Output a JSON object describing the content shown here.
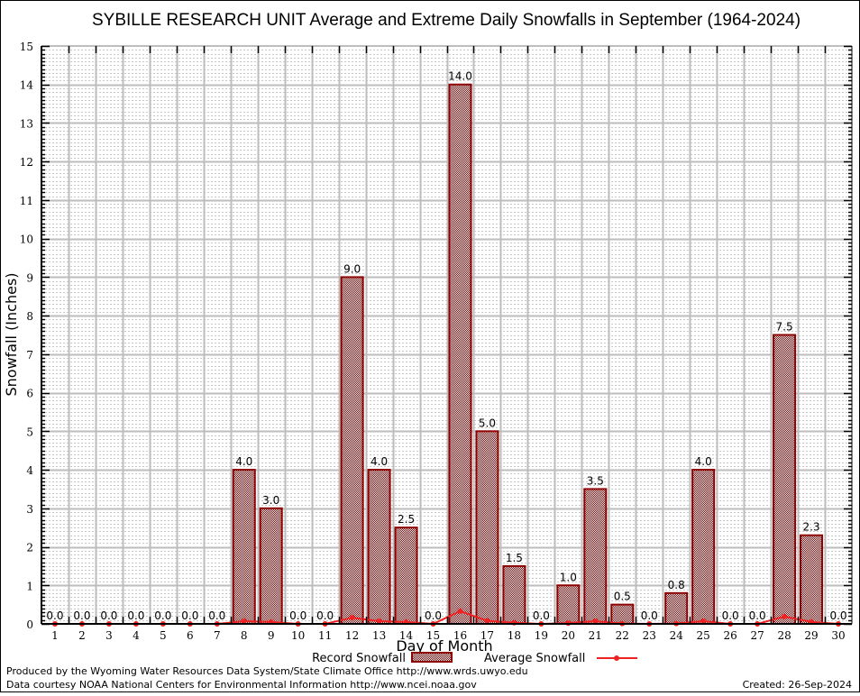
{
  "chart_data": {
    "type": "bar",
    "title": "SYBILLE RESEARCH UNIT Average and Extreme Daily Snowfalls in September (1964-2024)",
    "xlabel": "Day of Month",
    "ylabel": "Snowfall (Inches)",
    "ylim": [
      0,
      15
    ],
    "yticks": [
      "0",
      "1",
      "2",
      "3",
      "4",
      "5",
      "6",
      "7",
      "8",
      "9",
      "10",
      "11",
      "12",
      "13",
      "14",
      "15"
    ],
    "grid": true,
    "legend_position": "bottom",
    "categories": [
      "1",
      "2",
      "3",
      "4",
      "5",
      "6",
      "7",
      "8",
      "9",
      "10",
      "11",
      "12",
      "13",
      "14",
      "15",
      "16",
      "17",
      "18",
      "19",
      "20",
      "21",
      "22",
      "23",
      "24",
      "25",
      "26",
      "27",
      "28",
      "29",
      "30"
    ],
    "series": [
      {
        "name": "Record Snowfall",
        "type": "bar",
        "color": "#8b0000",
        "values": [
          0.0,
          0.0,
          0.0,
          0.0,
          0.0,
          0.0,
          0.0,
          4.0,
          3.0,
          0.0,
          0.0,
          9.0,
          4.0,
          2.5,
          0.0,
          14.0,
          5.0,
          1.5,
          0.0,
          1.0,
          3.5,
          0.5,
          0.0,
          0.8,
          4.0,
          0.0,
          0.0,
          7.5,
          2.3,
          0.0
        ],
        "labels": [
          "0.0",
          "0.0",
          "0.0",
          "0.0",
          "0.0",
          "0.0",
          "0.0",
          "4.0",
          "3.0",
          "0.0",
          "0.0",
          "9.0",
          "4.0",
          "2.5",
          "0.0",
          "14.0",
          "5.0",
          "1.5",
          "0.0",
          "1.0",
          "3.5",
          "0.5",
          "0.0",
          "0.8",
          "4.0",
          "0.0",
          "0.0",
          "7.5",
          "2.3",
          "0.0"
        ]
      },
      {
        "name": "Average Snowfall",
        "type": "line",
        "color": "#ee2222",
        "values": [
          0.0,
          0.0,
          0.0,
          0.0,
          0.0,
          0.0,
          0.0,
          0.07,
          0.05,
          0.0,
          0.0,
          0.16,
          0.07,
          0.05,
          0.0,
          0.33,
          0.08,
          0.03,
          0.0,
          0.02,
          0.07,
          0.01,
          0.0,
          0.01,
          0.07,
          0.0,
          0.0,
          0.19,
          0.05,
          0.0
        ]
      }
    ]
  },
  "footer": {
    "produced_by": "Produced by the Wyoming Water Resources Data System/State Climate Office http://www.wrds.uwyo.edu",
    "data_courtesy": "Data courtesy NOAA National Centers for Environmental Information http://www.ncei.noaa.gov",
    "created": "Created: 26-Sep-2024"
  }
}
